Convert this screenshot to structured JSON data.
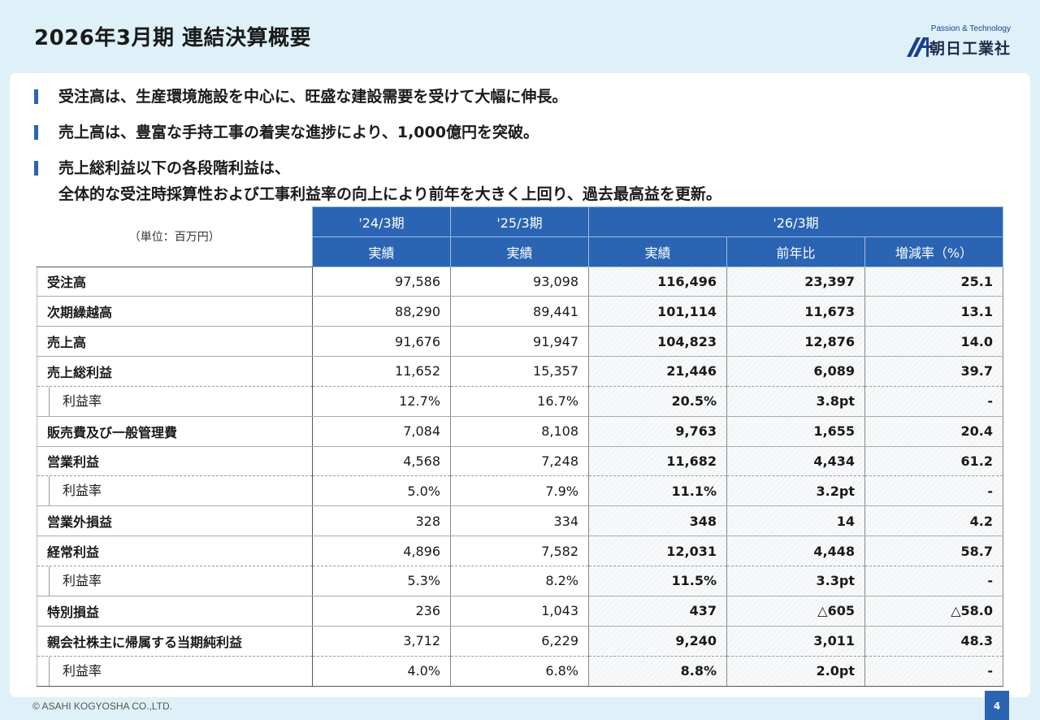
{
  "header": {
    "title": "2026年3月期 連結決算概要",
    "logo_tagline": "Passion & Technology",
    "logo_name": "朝日工業社"
  },
  "bullets": [
    "受注高は、生産環境施設を中心に、旺盛な建設需要を受けて大幅に伸長。",
    "売上高は、豊富な手持工事の着実な進捗により、1,000億円を突破。",
    "売上総利益以下の各段階利益は、",
    "全体的な受注時採算性および工事利益率の向上により前年を大きく上回り、過去最高益を更新。"
  ],
  "table": {
    "unit": "（単位：百万円）",
    "periods": [
      "'24/3期",
      "'25/3期",
      "'26/3期"
    ],
    "subheaders": [
      "実績",
      "実績",
      "実績",
      "前年比",
      "増減率（%）"
    ],
    "rows": [
      {
        "label": "受注高",
        "v24": "97,586",
        "v25": "93,098",
        "v26": "116,496",
        "yoy": "23,397",
        "rate": "25.1"
      },
      {
        "label": "次期繰越高",
        "v24": "88,290",
        "v25": "89,441",
        "v26": "101,114",
        "yoy": "11,673",
        "rate": "13.1"
      },
      {
        "label": "売上高",
        "v24": "91,676",
        "v25": "91,947",
        "v26": "104,823",
        "yoy": "12,876",
        "rate": "14.0"
      },
      {
        "label": "売上総利益",
        "v24": "11,652",
        "v25": "15,357",
        "v26": "21,446",
        "yoy": "6,089",
        "rate": "39.7"
      },
      {
        "label": "利益率",
        "v24": "12.7%",
        "v25": "16.7%",
        "v26": "20.5%",
        "yoy": "3.8pt",
        "rate": "-"
      },
      {
        "label": "販売費及び一般管理費",
        "v24": "7,084",
        "v25": "8,108",
        "v26": "9,763",
        "yoy": "1,655",
        "rate": "20.4"
      },
      {
        "label": "営業利益",
        "v24": "4,568",
        "v25": "7,248",
        "v26": "11,682",
        "yoy": "4,434",
        "rate": "61.2"
      },
      {
        "label": "利益率",
        "v24": "5.0%",
        "v25": "7.9%",
        "v26": "11.1%",
        "yoy": "3.2pt",
        "rate": "-"
      },
      {
        "label": "営業外損益",
        "v24": "328",
        "v25": "334",
        "v26": "348",
        "yoy": "14",
        "rate": "4.2"
      },
      {
        "label": "経常利益",
        "v24": "4,896",
        "v25": "7,582",
        "v26": "12,031",
        "yoy": "4,448",
        "rate": "58.7"
      },
      {
        "label": "利益率",
        "v24": "5.3%",
        "v25": "8.2%",
        "v26": "11.5%",
        "yoy": "3.3pt",
        "rate": "-"
      },
      {
        "label": "特別損益",
        "v24": "236",
        "v25": "1,043",
        "v26": "437",
        "yoy": "△605",
        "rate": "△58.0"
      },
      {
        "label": "親会社株主に帰属する当期純利益",
        "v24": "3,712",
        "v25": "6,229",
        "v26": "9,240",
        "yoy": "3,011",
        "rate": "48.3"
      },
      {
        "label": "利益率",
        "v24": "4.0%",
        "v25": "6.8%",
        "v26": "8.8%",
        "yoy": "2.0pt",
        "rate": "-"
      }
    ]
  },
  "footer": {
    "copyright": "© ASAHI KOGYOSHA CO.,LTD.",
    "page_number": "4"
  }
}
